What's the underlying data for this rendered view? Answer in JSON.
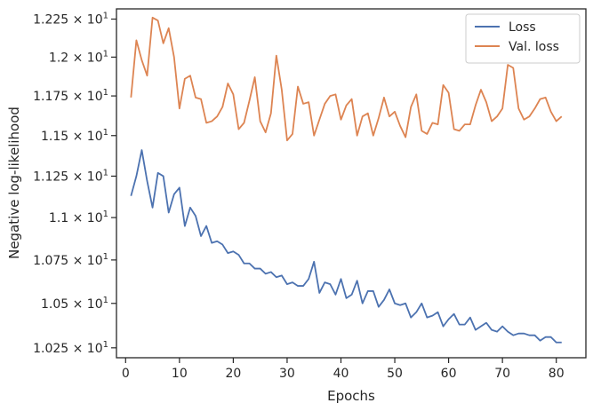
{
  "chart_data": {
    "type": "line",
    "xlabel": "Epochs",
    "ylabel": "Negative log-likelihood",
    "xlim": [
      -1.7,
      85.5
    ],
    "ylim": [
      10.195,
      12.318
    ],
    "yscale": "log",
    "xticks": [
      0,
      10,
      20,
      30,
      40,
      50,
      60,
      70,
      80
    ],
    "xtick_labels": [
      "0",
      "10",
      "20",
      "30",
      "40",
      "50",
      "60",
      "70",
      "80"
    ],
    "yticks": [
      10.25,
      10.5,
      10.75,
      11.0,
      11.25,
      11.5,
      11.75,
      12.0,
      12.25
    ],
    "ytick_labels": [
      {
        "mantissa": "1.025",
        "exp": "1"
      },
      {
        "mantissa": "1.05",
        "exp": "1"
      },
      {
        "mantissa": "1.075",
        "exp": "1"
      },
      {
        "mantissa": "1.1",
        "exp": "1"
      },
      {
        "mantissa": "1.125",
        "exp": "1"
      },
      {
        "mantissa": "1.15",
        "exp": "1"
      },
      {
        "mantissa": "1.175",
        "exp": "1"
      },
      {
        "mantissa": "1.2",
        "exp": "1"
      },
      {
        "mantissa": "1.225",
        "exp": "1"
      }
    ],
    "grid": false,
    "legend_position": "top-right",
    "x": [
      1,
      2,
      3,
      4,
      5,
      6,
      7,
      8,
      9,
      10,
      11,
      12,
      13,
      14,
      15,
      16,
      17,
      18,
      19,
      20,
      21,
      22,
      23,
      24,
      25,
      26,
      27,
      28,
      29,
      30,
      31,
      32,
      33,
      34,
      35,
      36,
      37,
      38,
      39,
      40,
      41,
      42,
      43,
      44,
      45,
      46,
      47,
      48,
      49,
      50,
      51,
      52,
      53,
      54,
      55,
      56,
      57,
      58,
      59,
      60,
      61,
      62,
      63,
      64,
      65,
      66,
      67,
      68,
      69,
      70,
      71,
      72,
      73,
      74,
      75,
      76,
      77,
      78,
      79,
      80,
      81
    ],
    "series": [
      {
        "name": "Loss",
        "color": "#4c72b0",
        "values": [
          11.13,
          11.25,
          11.41,
          11.22,
          11.06,
          11.27,
          11.25,
          11.03,
          11.14,
          11.18,
          10.95,
          11.06,
          11.01,
          10.89,
          10.95,
          10.85,
          10.86,
          10.84,
          10.79,
          10.8,
          10.78,
          10.73,
          10.73,
          10.7,
          10.7,
          10.67,
          10.68,
          10.65,
          10.66,
          10.61,
          10.62,
          10.6,
          10.6,
          10.64,
          10.74,
          10.56,
          10.62,
          10.61,
          10.55,
          10.64,
          10.53,
          10.55,
          10.63,
          10.5,
          10.57,
          10.57,
          10.48,
          10.52,
          10.58,
          10.5,
          10.49,
          10.5,
          10.42,
          10.45,
          10.5,
          10.42,
          10.43,
          10.45,
          10.37,
          10.41,
          10.44,
          10.38,
          10.38,
          10.42,
          10.35,
          10.37,
          10.39,
          10.35,
          10.34,
          10.37,
          10.34,
          10.32,
          10.33,
          10.33,
          10.32,
          10.32,
          10.29,
          10.31,
          10.31,
          10.28,
          10.28
        ]
      },
      {
        "name": "Val. loss",
        "color": "#dd8452",
        "values": [
          11.74,
          12.11,
          11.98,
          11.88,
          12.26,
          12.24,
          12.09,
          12.19,
          12.0,
          11.67,
          11.86,
          11.88,
          11.74,
          11.73,
          11.58,
          11.59,
          11.62,
          11.68,
          11.83,
          11.76,
          11.54,
          11.58,
          11.72,
          11.87,
          11.59,
          11.52,
          11.64,
          12.01,
          11.79,
          11.47,
          11.51,
          11.81,
          11.7,
          11.71,
          11.5,
          11.6,
          11.7,
          11.75,
          11.76,
          11.6,
          11.69,
          11.73,
          11.5,
          11.62,
          11.64,
          11.5,
          11.61,
          11.74,
          11.62,
          11.65,
          11.56,
          11.49,
          11.68,
          11.76,
          11.53,
          11.51,
          11.58,
          11.57,
          11.82,
          11.77,
          11.54,
          11.53,
          11.57,
          11.57,
          11.69,
          11.79,
          11.71,
          11.59,
          11.62,
          11.67,
          11.95,
          11.93,
          11.67,
          11.6,
          11.62,
          11.67,
          11.73,
          11.74,
          11.65,
          11.59,
          11.62
        ]
      }
    ]
  }
}
